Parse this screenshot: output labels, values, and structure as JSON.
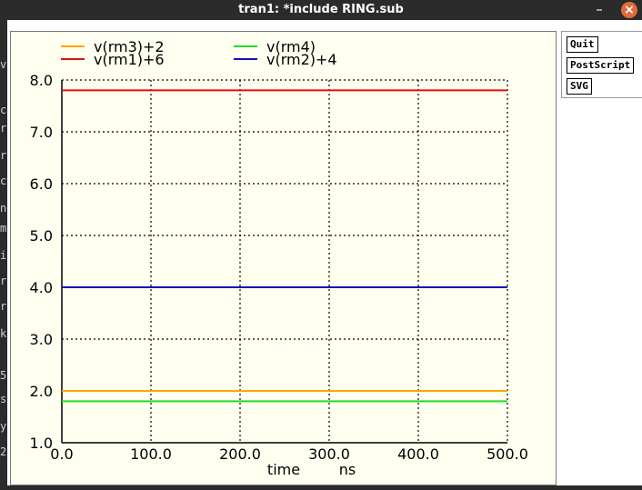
{
  "window": {
    "title": "tran1: *include RING.sub",
    "minimize_icon": "minimize-icon",
    "close_icon": "close-icon",
    "close_color": "#e06b3b"
  },
  "left_strip_chars": [
    "v",
    "c",
    "r",
    "r",
    "c",
    "n",
    "m",
    "i",
    "r",
    "r",
    "k",
    "5",
    "st",
    "y",
    "2"
  ],
  "buttons": {
    "quit": "Quit",
    "postscript": "PostScript",
    "svg": "SVG"
  },
  "chart_data": {
    "type": "line",
    "xlabel": "time",
    "xunit": "ns",
    "ylabel": "",
    "xlim": [
      0.0,
      500.0
    ],
    "ylim": [
      1.0,
      8.0
    ],
    "x_ticks": [
      "0.0",
      "100.0",
      "200.0",
      "300.0",
      "400.0",
      "500.0"
    ],
    "y_ticks": [
      "1.0",
      "2.0",
      "3.0",
      "4.0",
      "5.0",
      "6.0",
      "7.0",
      "8.0"
    ],
    "grid": true,
    "legend_position": "top-left",
    "series": [
      {
        "name": "v(rm3)+2",
        "color": "#ffa500",
        "x": [
          0,
          500
        ],
        "y": [
          2.0,
          2.0
        ]
      },
      {
        "name": "v(rm4)",
        "color": "#22dd22",
        "x": [
          0,
          500
        ],
        "y": [
          1.8,
          1.8
        ]
      },
      {
        "name": "v(rm1)+6",
        "color": "#dd1111",
        "x": [
          0,
          500
        ],
        "y": [
          7.8,
          7.8
        ]
      },
      {
        "name": "v(rm2)+4",
        "color": "#1111bb",
        "x": [
          0,
          500
        ],
        "y": [
          4.0,
          4.0
        ]
      }
    ]
  }
}
